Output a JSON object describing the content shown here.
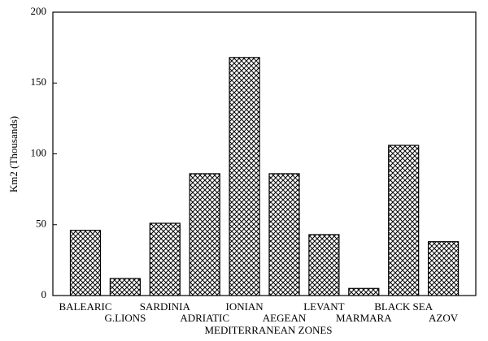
{
  "chart_data": {
    "type": "bar",
    "x_label": "MEDITERRANEAN ZONES",
    "y_label": "Km2 (Thousands)",
    "categories": [
      "BALEARIC",
      "G.LIONS",
      "SARDINIA",
      "ADRIATIC",
      "IONIAN",
      "AEGEAN",
      "LEVANT",
      "MARMARA",
      "BLACK SEA",
      "AZOV"
    ],
    "values": [
      46,
      12,
      51,
      86,
      168,
      86,
      43,
      5,
      106,
      38
    ],
    "color": "#000000",
    "ylim": [
      0,
      200
    ],
    "yticks": [
      0,
      50,
      100,
      150,
      200
    ],
    "grid": false
  }
}
